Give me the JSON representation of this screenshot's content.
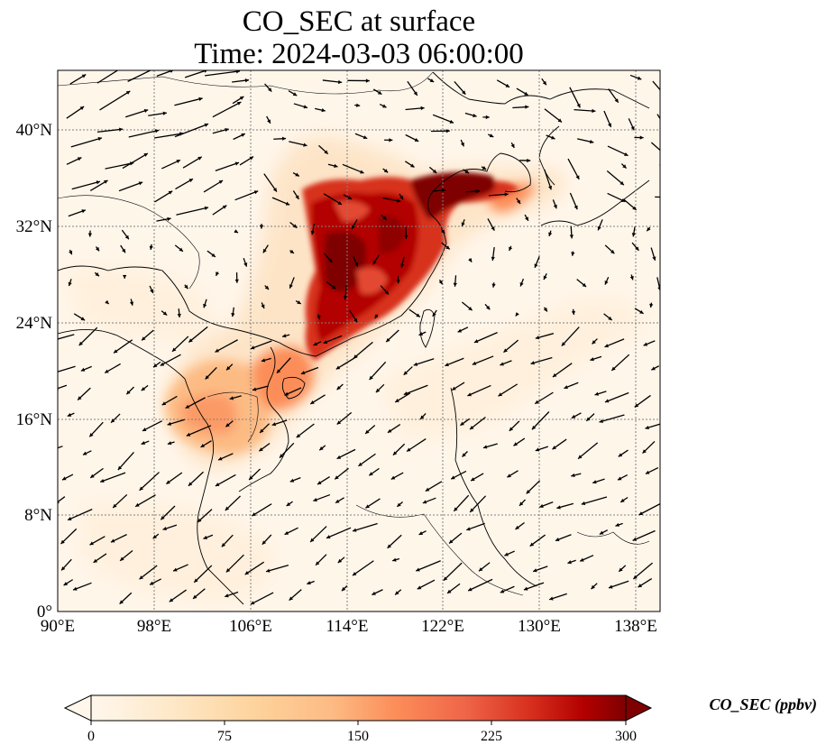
{
  "title": {
    "line1": "CO_SEC at surface",
    "line2": "Time: 2024-03-03 06:00:00"
  },
  "map": {
    "projection": "PlateCarree",
    "lon_range": [
      90,
      140
    ],
    "lat_range": [
      0,
      44
    ],
    "gridlines": "dotted gray",
    "x_ticks": [
      "90°E",
      "98°E",
      "106°E",
      "114°E",
      "122°E",
      "130°E",
      "138°E"
    ],
    "y_ticks": [
      "0°",
      "8°N",
      "16°N",
      "24°N",
      "32°N",
      "40°N"
    ],
    "field": "CO_SEC",
    "wind_vectors": "black arrows"
  },
  "colorbar": {
    "colormap": "OrRd",
    "label": "CO_SEC (ppbv)",
    "range": [
      0,
      300
    ],
    "extend": "both",
    "ticks": [
      "0",
      "75",
      "150",
      "225",
      "300"
    ]
  },
  "colors": {
    "background": "#fff6ea",
    "low": "#fee8c8",
    "mid": "#fc8d59",
    "high": "#b30000",
    "max": "#7f0000"
  }
}
